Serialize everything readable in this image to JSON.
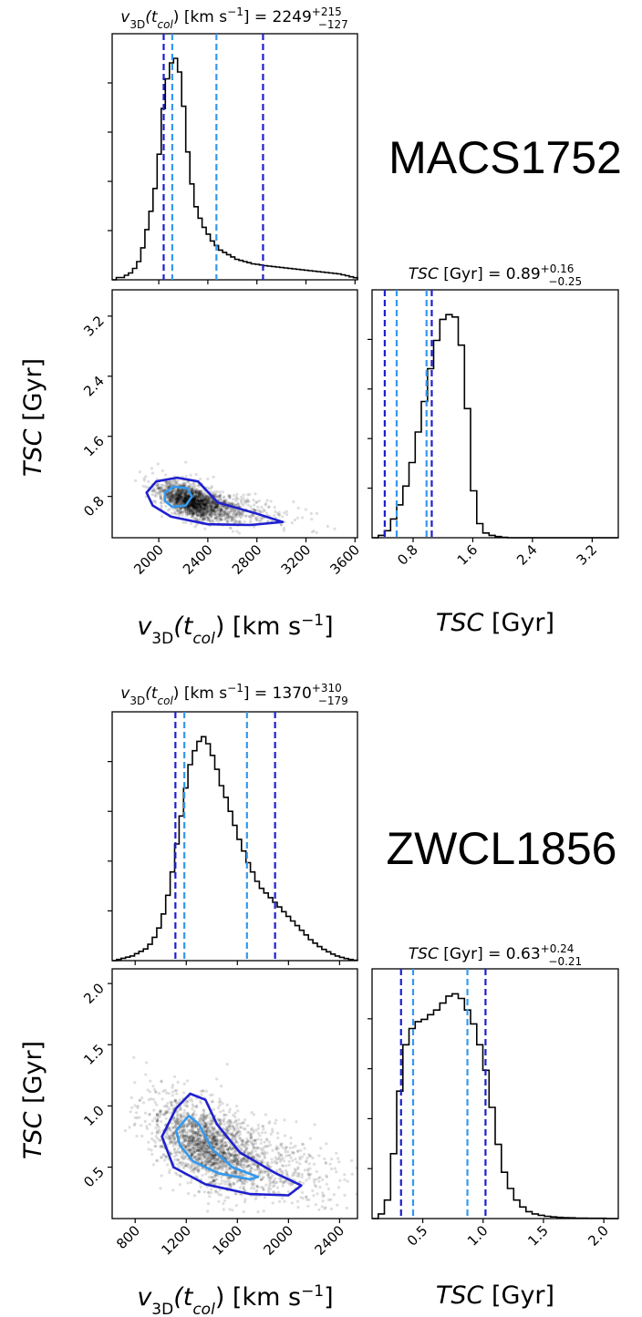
{
  "chart_data": [
    {
      "cluster": "MACS1752",
      "v3d_title": {
        "prefix": "v",
        "sub1": "3D",
        "mid": "(t",
        "sub2": "col",
        "after": ") [km s",
        "sup": "−1",
        "close": "] = 2249",
        "up": "+215",
        "down": "−127"
      },
      "tsc_title": {
        "italic": "TSC",
        "rest": " [Gyr] = 0.89",
        "up": "+0.16",
        "down": "−0.25"
      },
      "x_label": {
        "prefix": "v",
        "sub1": "3D",
        "mid": "(t",
        "sub2": "col",
        "after": ") [km s",
        "sup": "−1",
        "close": "]"
      },
      "y_label": {
        "italic": "TSC",
        "rest": " [Gyr]"
      },
      "tsc_xlabel": {
        "italic": "TSC",
        "rest": " [Gyr]"
      },
      "v3d_range": [
        1620,
        3620
      ],
      "tsc_range": [
        0.25,
        3.55
      ],
      "v3d_ticks": [
        "2000",
        "2400",
        "2800",
        "3200",
        "3600"
      ],
      "tsc_ticks": [
        "0.8",
        "1.6",
        "2.4",
        "3.2"
      ],
      "v3d_lines": {
        "outer": [
          2040,
          2850
        ],
        "inner": [
          2110,
          2470
        ]
      },
      "tsc_lines": {
        "outer": [
          0.42,
          1.05
        ],
        "inner": [
          0.58,
          0.98
        ]
      },
      "v3d_hist": [
        0,
        1,
        1,
        2,
        3,
        5,
        8,
        14,
        22,
        30,
        40,
        55,
        75,
        88,
        95,
        97,
        91,
        76,
        56,
        42,
        32,
        27,
        23,
        20,
        17,
        15,
        13,
        12,
        11,
        10,
        9,
        8.5,
        8,
        7.5,
        7,
        6.8,
        6.5,
        6.2,
        6,
        5.8,
        5.6,
        5.4,
        5.2,
        5,
        4.8,
        4.6,
        4.4,
        4.2,
        4,
        3.8,
        3.6,
        3.4,
        3.2,
        3,
        2.8,
        2.6,
        2.2,
        1.8,
        1.3,
        0.9
      ],
      "tsc_hist": [
        0,
        1,
        3,
        8,
        14,
        22,
        32,
        45,
        58,
        72,
        84,
        93,
        95,
        94,
        82,
        55,
        20,
        6,
        2,
        1,
        0.5,
        0.2,
        0,
        0,
        0,
        0,
        0,
        0,
        0,
        0,
        0,
        0,
        0,
        0,
        0,
        0,
        0,
        0,
        0,
        0
      ],
      "scatter": {
        "v_center": 2300,
        "v_spread": 140,
        "tsc_center": 0.72,
        "tsc_spread": 0.13,
        "n": 2200
      },
      "contours": {
        "outer": [
          [
            1900,
            0.85
          ],
          [
            1980,
            1.0
          ],
          [
            2150,
            1.05
          ],
          [
            2320,
            1.0
          ],
          [
            2480,
            0.72
          ],
          [
            2800,
            0.57
          ],
          [
            3010,
            0.46
          ],
          [
            2750,
            0.42
          ],
          [
            2400,
            0.43
          ],
          [
            2100,
            0.53
          ],
          [
            1950,
            0.68
          ]
        ],
        "inner": [
          [
            2050,
            0.85
          ],
          [
            2120,
            0.93
          ],
          [
            2230,
            0.91
          ],
          [
            2270,
            0.8
          ],
          [
            2220,
            0.68
          ],
          [
            2110,
            0.66
          ],
          [
            2050,
            0.74
          ]
        ]
      }
    },
    {
      "cluster": "ZWCL1856",
      "v3d_title": {
        "prefix": "v",
        "sub1": "3D",
        "mid": "(t",
        "sub2": "col",
        "after": ") [km s",
        "sup": "−1",
        "close": "] = 1370",
        "up": "+310",
        "down": "−179"
      },
      "tsc_title": {
        "italic": "TSC",
        "rest": " [Gyr] = 0.63",
        "up": "+0.24",
        "down": "−0.21"
      },
      "x_label": {
        "prefix": "v",
        "sub1": "3D",
        "mid": "(t",
        "sub2": "col",
        "after": ") [km s",
        "sup": "−1",
        "close": "]"
      },
      "y_label": {
        "italic": "TSC",
        "rest": " [Gyr]"
      },
      "tsc_xlabel": {
        "italic": "TSC",
        "rest": " [Gyr]"
      },
      "v3d_range": [
        620,
        2540
      ],
      "tsc_range": [
        0.08,
        2.12
      ],
      "v3d_ticks": [
        "800",
        "1200",
        "1600",
        "2000",
        "2400"
      ],
      "tsc_ticks": [
        "0.5",
        "1.0",
        "1.5",
        "2.0"
      ],
      "v3d_lines": {
        "outer": [
          1115,
          1895
        ],
        "inner": [
          1185,
          1675
        ]
      },
      "tsc_lines": {
        "outer": [
          0.32,
          1.02
        ],
        "inner": [
          0.42,
          0.87
        ]
      },
      "v3d_hist": [
        0,
        0.5,
        1,
        1.5,
        2,
        3,
        4,
        5,
        7,
        10,
        14,
        20,
        28,
        38,
        50,
        62,
        74,
        84,
        90,
        94,
        96,
        93,
        88,
        82,
        75,
        70,
        64,
        58,
        52,
        47,
        42,
        38,
        34,
        31,
        29,
        27,
        25,
        23,
        21,
        19,
        17,
        15,
        13,
        11,
        9,
        7.5,
        6,
        4.8,
        3.8,
        2.8,
        2,
        1.4,
        0.9,
        0.5,
        0.2
      ],
      "tsc_hist": [
        0,
        2,
        8,
        28,
        55,
        75,
        82,
        85,
        86,
        88,
        90,
        93,
        96,
        97,
        95,
        90,
        84,
        75,
        64,
        48,
        32,
        20,
        13,
        8,
        5,
        3,
        2,
        1.4,
        1,
        0.7,
        0.5,
        0.4,
        0.3,
        0.2,
        0.2,
        0.1,
        0.1,
        0.1,
        0,
        0
      ],
      "scatter": {
        "v_center": 1420,
        "v_spread": 240,
        "tsc_center": 0.65,
        "tsc_spread": 0.2,
        "n": 2400
      },
      "contours": {
        "outer": [
          [
            1010,
            0.75
          ],
          [
            1120,
            0.98
          ],
          [
            1230,
            1.1
          ],
          [
            1350,
            1.05
          ],
          [
            1440,
            0.85
          ],
          [
            1620,
            0.62
          ],
          [
            1900,
            0.45
          ],
          [
            2100,
            0.35
          ],
          [
            2000,
            0.27
          ],
          [
            1700,
            0.28
          ],
          [
            1350,
            0.36
          ],
          [
            1100,
            0.5
          ]
        ],
        "inner": [
          [
            1120,
            0.8
          ],
          [
            1220,
            0.92
          ],
          [
            1300,
            0.85
          ],
          [
            1400,
            0.65
          ],
          [
            1560,
            0.5
          ],
          [
            1760,
            0.42
          ],
          [
            1700,
            0.4
          ],
          [
            1450,
            0.45
          ],
          [
            1250,
            0.55
          ],
          [
            1150,
            0.68
          ]
        ]
      }
    }
  ],
  "colors": {
    "outer_line": "#1f1fcf",
    "inner_line": "#3399ee",
    "hist": "#000000",
    "scatter": "#000000"
  }
}
